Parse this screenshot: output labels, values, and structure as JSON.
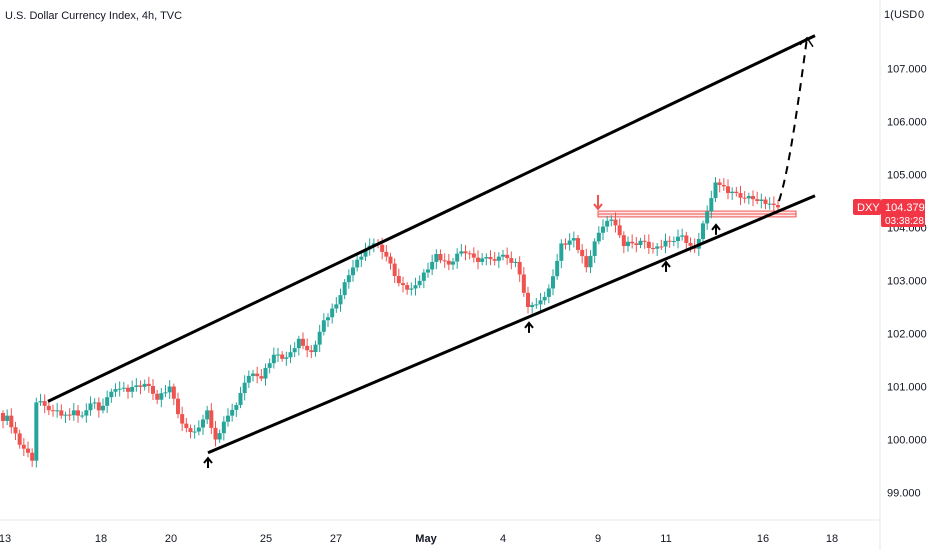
{
  "header": {
    "title": "U.S. Dollar Currency Index, 4h, TVC",
    "currency": "USD",
    "currency_menu_glyph": "0",
    "price_axis_top_fragment": "1("
  },
  "chart_data": {
    "type": "candlestick",
    "title": "U.S. Dollar Currency Index, 4h, TVC",
    "symbol": "DXY",
    "timeframe": "4h",
    "source": "TVC",
    "currency": "USD",
    "ylim": [
      98.6,
      107.75
    ],
    "y_ticks": [
      "107.000",
      "106.000",
      "105.000",
      "104.000",
      "103.000",
      "102.000",
      "101.000",
      "100.000",
      "99.000"
    ],
    "x_ticks": [
      "13",
      "18",
      "20",
      "25",
      "27",
      "May",
      "4",
      "9",
      "11",
      "16",
      "18"
    ],
    "last_price": "104.379",
    "countdown": "03:38:28",
    "colors": {
      "up": "#26a69a",
      "down": "#ef5350",
      "axis": "#131722",
      "badge": "#f23645",
      "trendline": "#000000"
    },
    "price_path": [
      [
        100.5,
        0
      ],
      [
        100.35,
        0
      ],
      [
        100.45,
        0
      ],
      [
        99.9,
        3
      ],
      [
        99.75,
        2
      ],
      [
        99.6,
        1
      ],
      [
        100.7,
        0
      ],
      [
        100.55,
        5
      ],
      [
        100.45,
        0
      ],
      [
        100.55,
        3
      ],
      [
        100.45,
        0
      ],
      [
        100.7,
        4
      ],
      [
        100.55,
        0
      ],
      [
        100.95,
        4
      ],
      [
        100.9,
        3
      ],
      [
        101.05,
        4
      ],
      [
        100.75,
        3
      ],
      [
        101.0,
        3
      ],
      [
        100.3,
        3
      ],
      [
        100.15,
        3
      ],
      [
        100.55,
        3
      ],
      [
        100.0,
        2
      ],
      [
        100.45,
        3
      ],
      [
        100.65,
        2
      ],
      [
        101.2,
        3
      ],
      [
        101.15,
        3
      ],
      [
        101.6,
        3
      ],
      [
        101.55,
        3
      ],
      [
        101.9,
        3
      ],
      [
        101.65,
        3
      ],
      [
        102.25,
        3
      ],
      [
        102.55,
        3
      ],
      [
        103.1,
        3
      ],
      [
        103.45,
        3
      ],
      [
        103.7,
        3
      ],
      [
        103.45,
        3
      ],
      [
        102.95,
        3
      ],
      [
        102.85,
        3
      ],
      [
        103.15,
        3
      ],
      [
        103.5,
        3
      ],
      [
        103.3,
        3
      ],
      [
        103.55,
        3
      ],
      [
        103.35,
        4
      ],
      [
        103.45,
        5
      ],
      [
        103.35,
        4
      ],
      [
        102.5,
        3
      ],
      [
        102.55,
        2
      ],
      [
        102.85,
        3
      ],
      [
        103.7,
        3
      ],
      [
        103.8,
        3
      ],
      [
        103.25,
        3
      ],
      [
        103.9,
        3
      ],
      [
        104.15,
        3
      ],
      [
        103.65,
        3
      ],
      [
        103.75,
        4
      ],
      [
        103.6,
        3
      ],
      [
        103.75,
        3
      ],
      [
        103.85,
        4
      ],
      [
        103.6,
        3
      ],
      [
        104.3,
        3
      ],
      [
        104.85,
        2
      ],
      [
        104.65,
        3
      ],
      [
        104.55,
        4
      ],
      [
        104.5,
        3
      ],
      [
        104.45,
        3
      ],
      [
        104.38,
        2
      ]
    ],
    "channel_upper": [
      [
        "14",
        100.72
      ],
      [
        "17",
        107.62
      ]
    ],
    "channel_lower": [
      [
        "21",
        99.75
      ],
      [
        "17",
        104.6
      ]
    ],
    "projection": [
      [
        "16",
        104.5
      ],
      [
        "17",
        107.58
      ]
    ],
    "resistance_zone": [
      104.2,
      104.31
    ],
    "markers": [
      {
        "type": "down-arrow",
        "label": "9",
        "price": 104.35
      },
      {
        "type": "up-arrow",
        "label": "21",
        "price": 99.65
      },
      {
        "type": "up-arrow",
        "label": "5",
        "price": 102.2
      },
      {
        "type": "up-arrow",
        "label": "11",
        "price": 103.35
      },
      {
        "type": "up-arrow",
        "label": "13",
        "price": 104.05
      }
    ]
  }
}
